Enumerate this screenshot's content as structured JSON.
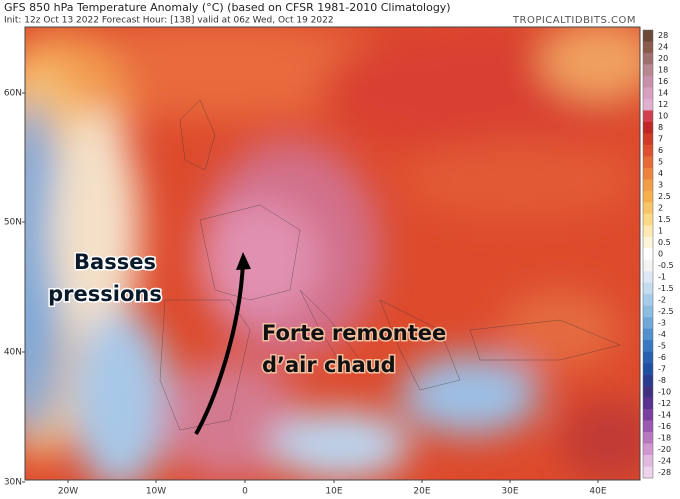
{
  "header": {
    "title": "GFS 850 hPa Temperature Anomaly (°C) (based on CFSR 1981-2010 Climatology)",
    "subtitle": "Init: 12z Oct 13 2022   Forecast Hour: [138]   valid at 06z Wed, Oct 19 2022",
    "site": "TROPICALTIDBITS.COM"
  },
  "latitudes": [
    "60N",
    "50N",
    "40N",
    "30N"
  ],
  "longitudes": [
    "20W",
    "10W",
    "0",
    "10E",
    "20E",
    "30E",
    "40E"
  ],
  "annotations": [
    {
      "lines": [
        "Basses",
        "pressions"
      ]
    },
    {
      "lines": [
        "Forte remontee",
        "d’air chaud"
      ]
    }
  ],
  "colorbar": {
    "ticks": [
      28,
      24,
      20,
      18,
      16,
      14,
      12,
      10,
      8,
      7,
      6,
      5,
      4,
      3,
      2.5,
      2,
      1.5,
      1,
      0.5,
      0,
      -0.5,
      -1,
      -1.5,
      -2,
      -2.5,
      -3,
      -4,
      -5,
      -6,
      -7,
      -8,
      -10,
      -12,
      -14,
      -16,
      -18,
      -20,
      -24,
      -28
    ],
    "colors": [
      "#6b4a3a",
      "#8a5a4a",
      "#a07070",
      "#b88890",
      "#c890a8",
      "#d8a0c0",
      "#e0b0d0",
      "#d04050",
      "#c02828",
      "#d03a28",
      "#dc5030",
      "#e46a38",
      "#ec8440",
      "#f29c48",
      "#f6b050",
      "#f8c468",
      "#fad888",
      "#fce8b0",
      "#fef4dc",
      "#ffffff",
      "#f4f4f4",
      "#dce8f4",
      "#c4dcf0",
      "#a8cce8",
      "#8cbce0",
      "#70a8d8",
      "#5090cc",
      "#3878c0",
      "#2860b0",
      "#2050a0",
      "#2a3c90",
      "#403080",
      "#5a3090",
      "#7a40a0",
      "#9a58b0",
      "#b878c0",
      "#d098d0",
      "#e0b8e0",
      "#ecd4ec"
    ]
  }
}
